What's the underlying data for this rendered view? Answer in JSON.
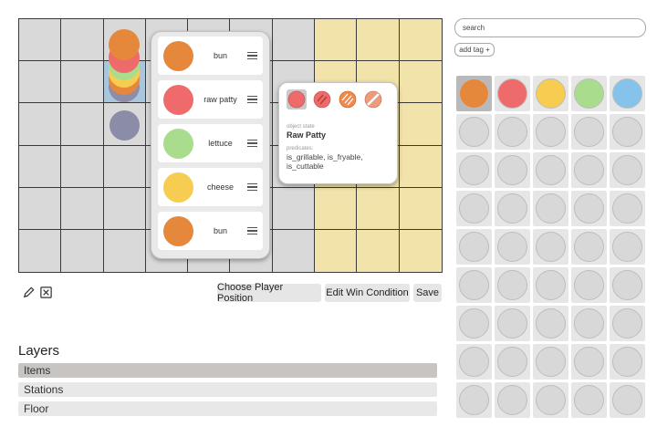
{
  "grid": {
    "rows": 6,
    "cols": 10,
    "station_columns": [
      7,
      8,
      9
    ],
    "selected_cell": {
      "row": 1,
      "col": 2
    },
    "colors": {
      "floor": "#d9d9d9",
      "station": "#f1e3a9",
      "selected": "#a9c6dd"
    }
  },
  "stack_preview": {
    "coins": [
      "#8e8ca6",
      "#e5883c",
      "#f6cd50",
      "#a9dc8c",
      "#ef6a6a",
      "#e5883c"
    ],
    "extra_item_color": "#8a8ca8"
  },
  "stack_panel": {
    "items": [
      {
        "label": "bun",
        "color": "#e5883c",
        "icon": "drag-handle-icon"
      },
      {
        "label": "raw patty",
        "color": "#ef6a6a",
        "icon": "drag-handle-icon"
      },
      {
        "label": "lettuce",
        "color": "#a9dc8c",
        "icon": "drag-handle-icon"
      },
      {
        "label": "cheese",
        "color": "#f6cd50",
        "icon": "drag-handle-icon"
      },
      {
        "label": "bun",
        "color": "#e5883c",
        "icon": "drag-handle-icon"
      }
    ]
  },
  "object_popup": {
    "states": [
      "raw-patty-state-icon",
      "grilled-patty-state-icon",
      "fried-patty-state-icon",
      "cut-patty-state-icon"
    ],
    "state_label": "object state",
    "state_value": "Raw Patty",
    "predicates_label": "predicates:",
    "predicates": "is_grillable, is_fryable, is_cuttable"
  },
  "toolbar": {
    "edit_icon": "pencil-icon",
    "delete_icon": "delete-box-icon",
    "choose_player_label": "Choose Player Position",
    "edit_win_label": "Edit Win Condition",
    "save_label": "Save"
  },
  "layers": {
    "title": "Layers",
    "items": [
      {
        "label": "Items",
        "active": true
      },
      {
        "label": "Stations",
        "active": false
      },
      {
        "label": "Floor",
        "active": false
      }
    ]
  },
  "search": {
    "value": "search"
  },
  "tags": {
    "add_label": "add tag +"
  },
  "palette": {
    "colors": [
      "#e5883c",
      "#ef6a6a",
      "#f6cd50",
      "#a9dc8c",
      "#85c3ea"
    ],
    "empty_color": "#d8d8d8",
    "rows": 9,
    "cols": 5
  }
}
